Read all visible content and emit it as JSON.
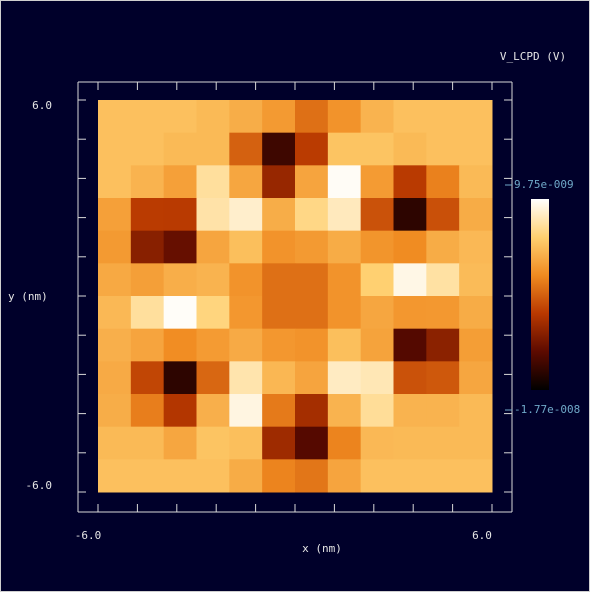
{
  "chart_data": {
    "type": "heatmap",
    "title": "V_LCPD (V)",
    "x_label": "x (nm)",
    "y_label": "y (nm)",
    "x": [
      -5.5,
      -4.5,
      -3.5,
      -2.5,
      -1.5,
      -0.5,
      0.5,
      1.5,
      2.5,
      3.5,
      4.5,
      5.5
    ],
    "y": [
      5.5,
      4.5,
      3.5,
      2.5,
      1.5,
      0.5,
      -0.5,
      -1.5,
      -2.5,
      -3.5,
      -4.5,
      -5.5
    ],
    "z": [
      [
        3e-09,
        3e-09,
        3e-09,
        2.5e-09,
        1.5e-09,
        0,
        -3e-09,
        -5e-10,
        2e-09,
        3e-09,
        3e-09,
        3e-09
      ],
      [
        3e-09,
        3e-09,
        2.5e-09,
        2.5e-09,
        -4e-09,
        -1.4e-08,
        -6.5e-09,
        3.3e-09,
        3.3e-09,
        2.5e-09,
        3e-09,
        3e-09
      ],
      [
        3e-09,
        2e-09,
        5e-10,
        6e-09,
        1e-09,
        -8.7e-09,
        8e-10,
        9.4e-09,
        1e-10,
        -6.6e-09,
        -1.8e-09,
        2.5e-09
      ],
      [
        5e-10,
        -6.5e-09,
        -6.6e-09,
        6.4e-09,
        7.8e-09,
        1.5e-09,
        5.1e-09,
        7.2e-09,
        -5e-09,
        -1.5e-08,
        -5.1e-09,
        1.4e-09
      ],
      [
        0,
        -9.6e-09,
        -1.16e-08,
        9e-10,
        2.9e-09,
        -5e-10,
        0,
        1.4e-09,
        -4e-10,
        -1.1e-09,
        1.4e-09,
        2.4e-09
      ],
      [
        1.2e-09,
        4e-10,
        1.6e-09,
        2e-09,
        -5e-10,
        -3e-09,
        -3e-09,
        -5e-10,
        4.3e-09,
        8.8e-09,
        6.2e-09,
        2.6e-09
      ],
      [
        2.4e-09,
        6e-09,
        9.5e-09,
        4.8e-09,
        -2e-10,
        -3e-09,
        -3e-09,
        -5e-10,
        1e-09,
        -2e-10,
        -1e-10,
        1.4e-09
      ],
      [
        1.7e-09,
        8e-10,
        -1e-09,
        1e-10,
        1.3e-09,
        -2e-10,
        -5e-10,
        2.9e-09,
        7e-10,
        -1.27e-08,
        -9.4e-09,
        3e-10
      ],
      [
        1.3e-09,
        -5.8e-09,
        -1.5e-08,
        -3.6e-09,
        6.6e-09,
        2.3e-09,
        8e-10,
        7.4e-09,
        6.9e-09,
        -5e-09,
        -4.6e-09,
        1e-09
      ],
      [
        1.5e-09,
        -2e-09,
        -7e-09,
        1.7e-09,
        8.6e-09,
        -2.3e-09,
        -7.9e-09,
        2e-09,
        5.8e-09,
        2e-09,
        2e-09,
        2.5e-09
      ],
      [
        2.5e-09,
        2.5e-09,
        1e-09,
        3.3e-09,
        2.9e-09,
        -8.3e-09,
        -1.26e-08,
        -1.6e-09,
        2.4e-09,
        2.5e-09,
        2.5e-09,
        2.5e-09
      ],
      [
        3e-09,
        3e-09,
        3e-09,
        3e-09,
        1.4e-09,
        -1.6e-09,
        -2.6e-09,
        8e-10,
        3e-09,
        3e-09,
        3e-09,
        3e-09
      ]
    ],
    "xlim": [
      -6,
      6
    ],
    "ylim": [
      -6,
      6
    ],
    "xticks": [
      {
        "value": -6,
        "label": "-6.0"
      },
      {
        "value": 6,
        "label": "6.0"
      }
    ],
    "yticks": [
      {
        "value": -6,
        "label": "-6.0"
      },
      {
        "value": 6,
        "label": "6.0"
      }
    ],
    "xminorticks": [
      -6,
      -4.8,
      -3.6,
      -2.4,
      -1.2,
      0,
      1.2,
      2.4,
      3.6,
      4.8,
      6
    ],
    "yminorticks": [
      -6,
      -4.8,
      -3.6,
      -2.4,
      -1.2,
      0,
      1.2,
      2.4,
      3.6,
      4.8,
      6
    ],
    "zlim": [
      -1.77e-08,
      9.75e-09
    ],
    "zticks": [
      {
        "value": -1.77e-08,
        "label": "-1.77e-008"
      },
      {
        "value": 9.75e-09,
        "label": "9.75e-009"
      }
    ],
    "colormap": [
      "#000000",
      "#5c0a00",
      "#b83800",
      "#f08a20",
      "#ffd070",
      "#ffffff"
    ]
  }
}
